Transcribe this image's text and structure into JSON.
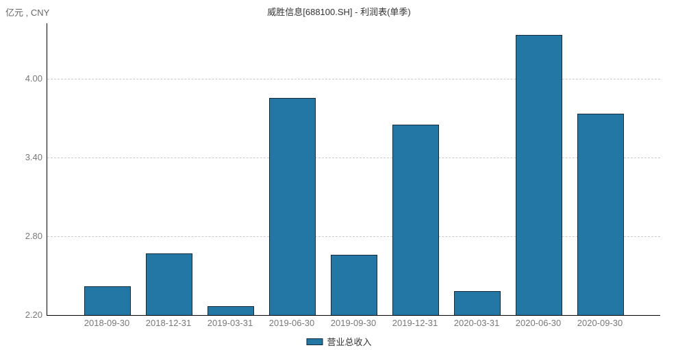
{
  "colors": {
    "bar_fill": "#2277a5",
    "bar_border": "#13293a",
    "axis": "#000000",
    "grid": "#c9c9c9",
    "tick_text": "#777777",
    "title_text": "#333333"
  },
  "chart_data": {
    "type": "bar",
    "title": "威胜信息[688100.SH] - 利润表(单季)",
    "unit": "亿元 , CNY",
    "categories": [
      "2018-09-30",
      "2018-12-31",
      "2019-03-31",
      "2019-06-30",
      "2019-09-30",
      "2019-12-31",
      "2020-03-31",
      "2020-06-30",
      "2020-09-30"
    ],
    "series": [
      {
        "name": "营业总收入",
        "values": [
          2.42,
          2.67,
          2.27,
          3.85,
          2.66,
          3.65,
          2.38,
          4.33,
          3.73
        ]
      }
    ],
    "xlabel": "",
    "ylabel": "亿元 , CNY",
    "ylim": [
      2.2,
      4.42
    ],
    "yticks": [
      {
        "value": 2.2,
        "label": "2.20"
      },
      {
        "value": 2.8,
        "label": "2.80"
      },
      {
        "value": 3.4,
        "label": "3.40"
      },
      {
        "value": 4.0,
        "label": "4.00"
      }
    ],
    "grid": true,
    "legend_position": "bottom-center"
  }
}
